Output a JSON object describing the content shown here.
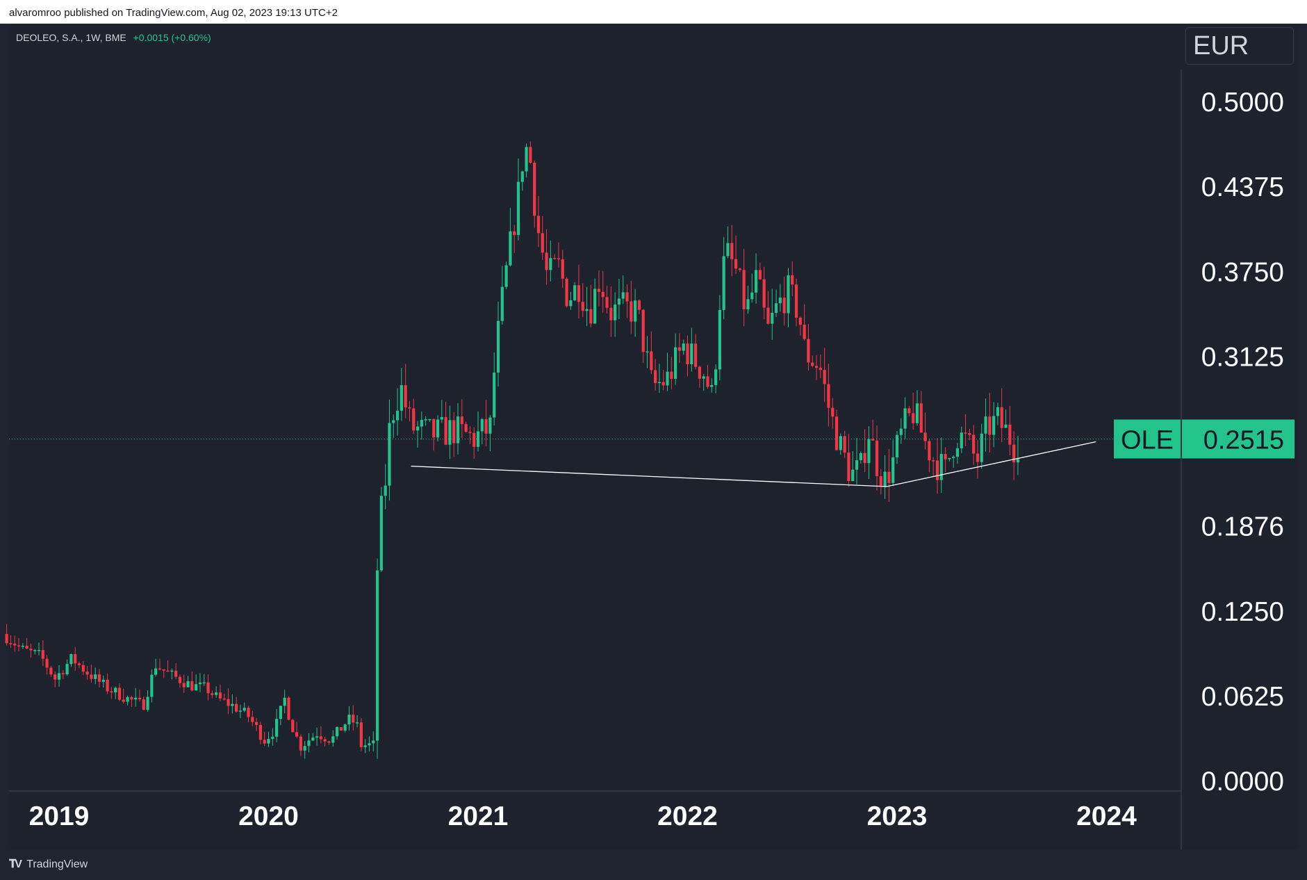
{
  "header": {
    "published": "alvaromroo published on TradingView.com, Aug 02, 2023 19:13 UTC+2"
  },
  "legend": {
    "symbol": "DEOLEO, S.A., 1W, BME",
    "change": "+0.0015 (+0.60%)"
  },
  "currency": "EUR",
  "price_label": {
    "ticker": "OLE",
    "value": "0.2515",
    "color": "#22c48c"
  },
  "footer": {
    "brand": "TradingView"
  },
  "colors": {
    "up": "#22c48c",
    "down": "#f23645",
    "background": "#1e222d",
    "axis_text": "#ffffff",
    "trendline": "#ffffff"
  },
  "chart_data": {
    "type": "candlestick",
    "title": "DEOLEO, S.A., 1W, BME",
    "ylabel": "EUR",
    "ylim": [
      0,
      0.52
    ],
    "y_ticks": [
      "0.5000",
      "0.4375",
      "0.3750",
      "0.3125",
      "0.1876",
      "0.1250",
      "0.0625",
      "0.0000"
    ],
    "x_ticks": [
      "2019",
      "2020",
      "2021",
      "2022",
      "2023",
      "2024"
    ],
    "x_tick_values": [
      2019,
      2020,
      2021,
      2022,
      2023,
      2024
    ],
    "xlim": [
      2018.75,
      2024.35
    ],
    "last_price": 0.2515,
    "trendlines": [
      {
        "points": [
          [
            2020.68,
            0.2315
          ],
          [
            2022.95,
            0.2165
          ]
        ]
      },
      {
        "points": [
          [
            2022.95,
            0.2165
          ],
          [
            2023.95,
            0.2495
          ]
        ]
      }
    ],
    "price_path": [
      [
        2018.75,
        0.108
      ],
      [
        2018.85,
        0.096
      ],
      [
        2018.93,
        0.092
      ],
      [
        2019.0,
        0.075
      ],
      [
        2019.08,
        0.09
      ],
      [
        2019.15,
        0.08
      ],
      [
        2019.25,
        0.068
      ],
      [
        2019.35,
        0.06
      ],
      [
        2019.42,
        0.055
      ],
      [
        2019.48,
        0.085
      ],
      [
        2019.55,
        0.078
      ],
      [
        2019.65,
        0.07
      ],
      [
        2019.72,
        0.068
      ],
      [
        2019.78,
        0.06
      ],
      [
        2019.85,
        0.055
      ],
      [
        2019.92,
        0.048
      ],
      [
        2020.0,
        0.03
      ],
      [
        2020.05,
        0.038
      ],
      [
        2020.1,
        0.062
      ],
      [
        2020.12,
        0.045
      ],
      [
        2020.17,
        0.025
      ],
      [
        2020.25,
        0.035
      ],
      [
        2020.32,
        0.03
      ],
      [
        2020.4,
        0.045
      ],
      [
        2020.44,
        0.042
      ],
      [
        2020.46,
        0.026
      ],
      [
        2020.53,
        0.026
      ],
      [
        2020.54,
        0.18
      ],
      [
        2020.56,
        0.2
      ],
      [
        2020.58,
        0.225
      ],
      [
        2020.6,
        0.265
      ],
      [
        2020.65,
        0.29
      ],
      [
        2020.7,
        0.26
      ],
      [
        2020.8,
        0.255
      ],
      [
        2020.9,
        0.258
      ],
      [
        2021.0,
        0.252
      ],
      [
        2021.08,
        0.26
      ],
      [
        2021.1,
        0.31
      ],
      [
        2021.14,
        0.36
      ],
      [
        2021.18,
        0.4
      ],
      [
        2021.22,
        0.44
      ],
      [
        2021.24,
        0.47
      ],
      [
        2021.27,
        0.455
      ],
      [
        2021.3,
        0.41
      ],
      [
        2021.35,
        0.37
      ],
      [
        2021.4,
        0.38
      ],
      [
        2021.45,
        0.355
      ],
      [
        2021.5,
        0.365
      ],
      [
        2021.55,
        0.345
      ],
      [
        2021.6,
        0.37
      ],
      [
        2021.65,
        0.345
      ],
      [
        2021.72,
        0.348
      ],
      [
        2021.78,
        0.345
      ],
      [
        2021.85,
        0.29
      ],
      [
        2021.92,
        0.295
      ],
      [
        2022.0,
        0.32
      ],
      [
        2022.05,
        0.31
      ],
      [
        2022.1,
        0.3
      ],
      [
        2022.14,
        0.28
      ],
      [
        2022.17,
        0.35
      ],
      [
        2022.2,
        0.39
      ],
      [
        2022.25,
        0.375
      ],
      [
        2022.3,
        0.345
      ],
      [
        2022.35,
        0.37
      ],
      [
        2022.4,
        0.33
      ],
      [
        2022.45,
        0.35
      ],
      [
        2022.5,
        0.36
      ],
      [
        2022.55,
        0.345
      ],
      [
        2022.58,
        0.315
      ],
      [
        2022.65,
        0.305
      ],
      [
        2022.7,
        0.27
      ],
      [
        2022.75,
        0.245
      ],
      [
        2022.8,
        0.225
      ],
      [
        2022.85,
        0.23
      ],
      [
        2022.88,
        0.26
      ],
      [
        2022.92,
        0.235
      ],
      [
        2022.96,
        0.22
      ],
      [
        2023.0,
        0.235
      ],
      [
        2023.05,
        0.26
      ],
      [
        2023.1,
        0.272
      ],
      [
        2023.15,
        0.25
      ],
      [
        2023.2,
        0.235
      ],
      [
        2023.25,
        0.228
      ],
      [
        2023.3,
        0.255
      ],
      [
        2023.35,
        0.25
      ],
      [
        2023.4,
        0.235
      ],
      [
        2023.45,
        0.26
      ],
      [
        2023.5,
        0.265
      ],
      [
        2023.55,
        0.255
      ],
      [
        2023.58,
        0.245
      ],
      [
        2023.6,
        0.25
      ]
    ]
  }
}
